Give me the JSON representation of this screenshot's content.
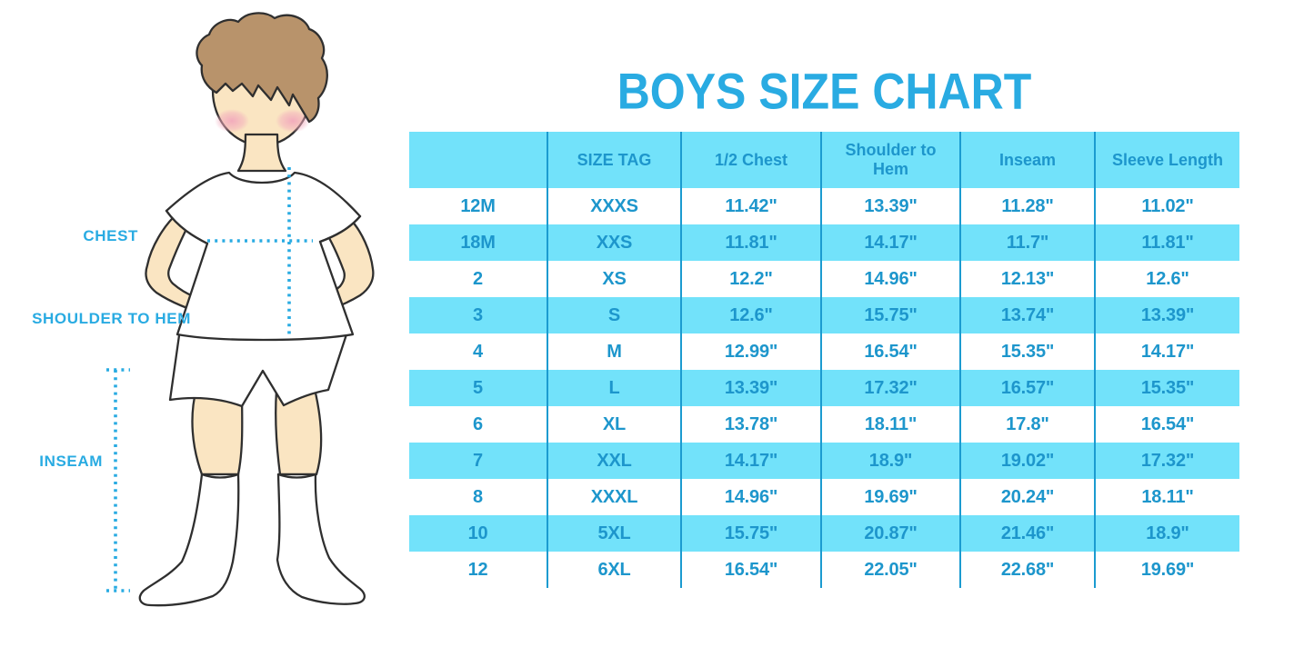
{
  "title": {
    "text": "BOYS SIZE CHART"
  },
  "theme": {
    "accent": "#29ABE2",
    "band": "#72E2FA",
    "separator": "#1B9BD0",
    "text": "#1D96CC",
    "skin": "#FAE5C2",
    "hair": "#B8936B",
    "outline": "#2F2F2F",
    "cheek": "#F2A9BC"
  },
  "figure": {
    "labels": {
      "chest": "CHEST",
      "shoulder_to_hem": "SHOULDER TO HEM",
      "inseam": "INSEAM"
    }
  },
  "table": {
    "columns": [
      "",
      "SIZE TAG",
      "1/2 Chest",
      "Shoulder to Hem",
      "Inseam",
      "Sleeve Length"
    ],
    "rows": [
      {
        "size": "12M",
        "tag": "XXXS",
        "half_chest": "11.42\"",
        "shoulder_to_hem": "13.39\"",
        "inseam": "11.28\"",
        "sleeve_length": "11.02\""
      },
      {
        "size": "18M",
        "tag": "XXS",
        "half_chest": "11.81\"",
        "shoulder_to_hem": "14.17\"",
        "inseam": "11.7\"",
        "sleeve_length": "11.81\""
      },
      {
        "size": "2",
        "tag": "XS",
        "half_chest": "12.2\"",
        "shoulder_to_hem": "14.96\"",
        "inseam": "12.13\"",
        "sleeve_length": "12.6\""
      },
      {
        "size": "3",
        "tag": "S",
        "half_chest": "12.6\"",
        "shoulder_to_hem": "15.75\"",
        "inseam": "13.74\"",
        "sleeve_length": "13.39\""
      },
      {
        "size": "4",
        "tag": "M",
        "half_chest": "12.99\"",
        "shoulder_to_hem": "16.54\"",
        "inseam": "15.35\"",
        "sleeve_length": "14.17\""
      },
      {
        "size": "5",
        "tag": "L",
        "half_chest": "13.39\"",
        "shoulder_to_hem": "17.32\"",
        "inseam": "16.57\"",
        "sleeve_length": "15.35\""
      },
      {
        "size": "6",
        "tag": "XL",
        "half_chest": "13.78\"",
        "shoulder_to_hem": "18.11\"",
        "inseam": "17.8\"",
        "sleeve_length": "16.54\""
      },
      {
        "size": "7",
        "tag": "XXL",
        "half_chest": "14.17\"",
        "shoulder_to_hem": "18.9\"",
        "inseam": "19.02\"",
        "sleeve_length": "17.32\""
      },
      {
        "size": "8",
        "tag": "XXXL",
        "half_chest": "14.96\"",
        "shoulder_to_hem": "19.69\"",
        "inseam": "20.24\"",
        "sleeve_length": "18.11\""
      },
      {
        "size": "10",
        "tag": "5XL",
        "half_chest": "15.75\"",
        "shoulder_to_hem": "20.87\"",
        "inseam": "21.46\"",
        "sleeve_length": "18.9\""
      },
      {
        "size": "12",
        "tag": "6XL",
        "half_chest": "16.54\"",
        "shoulder_to_hem": "22.05\"",
        "inseam": "22.68\"",
        "sleeve_length": "19.69\""
      }
    ]
  },
  "chart_data": {
    "type": "table",
    "title": "BOYS SIZE CHART",
    "columns": [
      "",
      "SIZE TAG",
      "1/2 Chest",
      "Shoulder to Hem",
      "Inseam",
      "Sleeve Length"
    ],
    "rows": [
      [
        "12M",
        "XXXS",
        "11.42\"",
        "13.39\"",
        "11.28\"",
        "11.02\""
      ],
      [
        "18M",
        "XXS",
        "11.81\"",
        "14.17\"",
        "11.7\"",
        "11.81\""
      ],
      [
        "2",
        "XS",
        "12.2\"",
        "14.96\"",
        "12.13\"",
        "12.6\""
      ],
      [
        "3",
        "S",
        "12.6\"",
        "15.75\"",
        "13.74\"",
        "13.39\""
      ],
      [
        "4",
        "M",
        "12.99\"",
        "16.54\"",
        "15.35\"",
        "14.17\""
      ],
      [
        "5",
        "L",
        "13.39\"",
        "17.32\"",
        "16.57\"",
        "15.35\""
      ],
      [
        "6",
        "XL",
        "13.78\"",
        "18.11\"",
        "17.8\"",
        "16.54\""
      ],
      [
        "7",
        "XXL",
        "14.17\"",
        "18.9\"",
        "19.02\"",
        "17.32\""
      ],
      [
        "8",
        "XXXL",
        "14.96\"",
        "19.69\"",
        "20.24\"",
        "18.11\""
      ],
      [
        "10",
        "5XL",
        "15.75\"",
        "20.87\"",
        "21.46\"",
        "18.9\""
      ],
      [
        "12",
        "6XL",
        "16.54\"",
        "22.05\"",
        "22.68\"",
        "19.69\""
      ]
    ],
    "annotations": [
      "CHEST",
      "SHOULDER TO HEM",
      "INSEAM"
    ]
  }
}
